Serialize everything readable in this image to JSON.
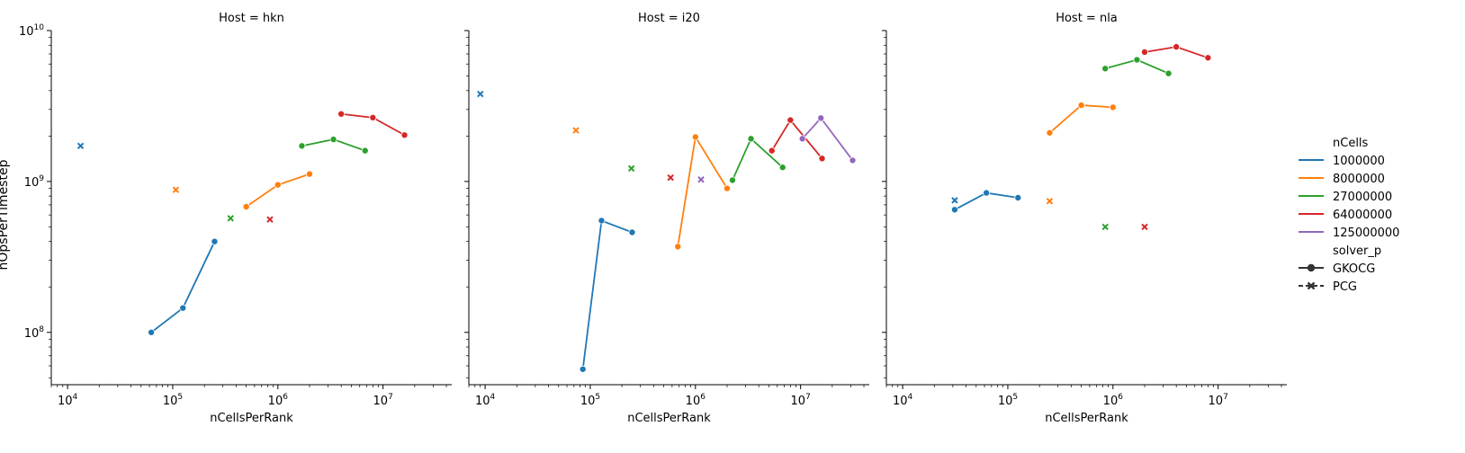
{
  "figure": {
    "ylabel": "nOpsPerTimestep",
    "xlabel": "nCellsPerRank"
  },
  "legend": {
    "hue_title": "nCells",
    "hue_entries": [
      {
        "label": "1000000",
        "color": "#1f77b4"
      },
      {
        "label": "8000000",
        "color": "#ff7f0e"
      },
      {
        "label": "27000000",
        "color": "#2ca02c"
      },
      {
        "label": "64000000",
        "color": "#d62728"
      },
      {
        "label": "125000000",
        "color": "#9467bd"
      }
    ],
    "style_title": "solver_p",
    "style_entries": [
      {
        "label": "GKOCG",
        "marker": "circle",
        "line": "solid"
      },
      {
        "label": "PCG",
        "marker": "x",
        "line": "dashed"
      }
    ],
    "placement": "right"
  },
  "chart_data": [
    {
      "type": "line",
      "title": "Host = hkn",
      "xlabel": "nCellsPerRank",
      "ylabel": "nOpsPerTimestep",
      "xscale": "log",
      "yscale": "log",
      "xlim": [
        7000,
        45000000
      ],
      "ylim": [
        45000000,
        10000000000
      ],
      "xticks": [
        {
          "v": 10000,
          "base": "10",
          "exp": "4"
        },
        {
          "v": 100000,
          "base": "10",
          "exp": "5"
        },
        {
          "v": 1000000,
          "base": "10",
          "exp": "6"
        },
        {
          "v": 10000000,
          "base": "10",
          "exp": "7"
        }
      ],
      "yticks": [
        {
          "v": 100000000,
          "base": "10",
          "exp": "8"
        },
        {
          "v": 1000000000,
          "base": "10",
          "exp": "9"
        },
        {
          "v": 10000000000,
          "base": "10",
          "exp": "10"
        }
      ],
      "series": [
        {
          "name": "1000000",
          "solver": "GKOCG",
          "color": "#1f77b4",
          "x": [
            62500,
            125000,
            250000
          ],
          "y": [
            100000000,
            145000000,
            400000000
          ]
        },
        {
          "name": "8000000",
          "solver": "GKOCG",
          "color": "#ff7f0e",
          "x": [
            500000,
            1000000,
            2000000
          ],
          "y": [
            680000000,
            950000000,
            1120000000
          ]
        },
        {
          "name": "27000000",
          "solver": "GKOCG",
          "color": "#2ca02c",
          "x": [
            1690000,
            3375000,
            6750000
          ],
          "y": [
            1720000000,
            1900000000,
            1600000000
          ]
        },
        {
          "name": "64000000",
          "solver": "GKOCG",
          "color": "#d62728",
          "x": [
            4000000,
            8000000,
            16000000
          ],
          "y": [
            2800000000,
            2650000000,
            2030000000
          ]
        },
        {
          "name": "1000000",
          "solver": "PCG",
          "color": "#1f77b4",
          "x": [
            13300
          ],
          "y": [
            1720000000
          ]
        },
        {
          "name": "8000000",
          "solver": "PCG",
          "color": "#ff7f0e",
          "x": [
            107000
          ],
          "y": [
            880000000
          ]
        },
        {
          "name": "27000000",
          "solver": "PCG",
          "color": "#2ca02c",
          "x": [
            355000
          ],
          "y": [
            570000000
          ]
        },
        {
          "name": "64000000",
          "solver": "PCG",
          "color": "#d62728",
          "x": [
            840000
          ],
          "y": [
            560000000
          ]
        }
      ]
    },
    {
      "type": "line",
      "title": "Host = i20",
      "xlabel": "nCellsPerRank",
      "ylabel": "",
      "xscale": "log",
      "yscale": "log",
      "xlim": [
        7000,
        45000000
      ],
      "ylim": [
        45000000,
        10000000000
      ],
      "xticks": [
        {
          "v": 10000,
          "base": "10",
          "exp": "4"
        },
        {
          "v": 100000,
          "base": "10",
          "exp": "5"
        },
        {
          "v": 1000000,
          "base": "10",
          "exp": "6"
        },
        {
          "v": 10000000,
          "base": "10",
          "exp": "7"
        }
      ],
      "yticks": [],
      "series": [
        {
          "name": "1000000",
          "solver": "GKOCG",
          "color": "#1f77b4",
          "x": [
            85000,
            128000,
            250000
          ],
          "y": [
            57000000,
            550000000,
            460000000
          ]
        },
        {
          "name": "8000000",
          "solver": "GKOCG",
          "color": "#ff7f0e",
          "x": [
            680000,
            1000000,
            2000000
          ],
          "y": [
            370000000,
            1970000000,
            900000000
          ]
        },
        {
          "name": "27000000",
          "solver": "GKOCG",
          "color": "#2ca02c",
          "x": [
            2250000,
            3375000,
            6750000
          ],
          "y": [
            1020000000,
            1920000000,
            1240000000
          ]
        },
        {
          "name": "64000000",
          "solver": "GKOCG",
          "color": "#d62728",
          "x": [
            5330000,
            8000000,
            16000000
          ],
          "y": [
            1600000000,
            2550000000,
            1420000000
          ]
        },
        {
          "name": "125000000",
          "solver": "GKOCG",
          "color": "#9467bd",
          "x": [
            10400000,
            15600000,
            31250000
          ],
          "y": [
            1920000000,
            2630000000,
            1380000000
          ]
        },
        {
          "name": "1000000",
          "solver": "PCG",
          "color": "#1f77b4",
          "x": [
            9000
          ],
          "y": [
            3800000000
          ]
        },
        {
          "name": "8000000",
          "solver": "PCG",
          "color": "#ff7f0e",
          "x": [
            73000
          ],
          "y": [
            2180000000
          ]
        },
        {
          "name": "27000000",
          "solver": "PCG",
          "color": "#2ca02c",
          "x": [
            246000
          ],
          "y": [
            1220000000
          ]
        },
        {
          "name": "64000000",
          "solver": "PCG",
          "color": "#d62728",
          "x": [
            580000
          ],
          "y": [
            1060000000
          ]
        },
        {
          "name": "125000000",
          "solver": "PCG",
          "color": "#9467bd",
          "x": [
            1130000
          ],
          "y": [
            1030000000
          ]
        }
      ]
    },
    {
      "type": "line",
      "title": "Host = nla",
      "xlabel": "nCellsPerRank",
      "ylabel": "",
      "xscale": "log",
      "yscale": "log",
      "xlim": [
        7000,
        45000000
      ],
      "ylim": [
        45000000,
        10000000000
      ],
      "xticks": [
        {
          "v": 10000,
          "base": "10",
          "exp": "4"
        },
        {
          "v": 100000,
          "base": "10",
          "exp": "5"
        },
        {
          "v": 1000000,
          "base": "10",
          "exp": "6"
        },
        {
          "v": 10000000,
          "base": "10",
          "exp": "7"
        }
      ],
      "yticks": [],
      "series": [
        {
          "name": "1000000",
          "solver": "GKOCG",
          "color": "#1f77b4",
          "x": [
            31250,
            62500,
            125000
          ],
          "y": [
            650000000,
            840000000,
            780000000
          ]
        },
        {
          "name": "8000000",
          "solver": "GKOCG",
          "color": "#ff7f0e",
          "x": [
            250000,
            500000,
            1000000
          ],
          "y": [
            2100000000,
            3200000000,
            3100000000
          ]
        },
        {
          "name": "27000000",
          "solver": "GKOCG",
          "color": "#2ca02c",
          "x": [
            844000,
            1690000,
            3375000
          ],
          "y": [
            5600000000,
            6400000000,
            5200000000
          ]
        },
        {
          "name": "64000000",
          "solver": "GKOCG",
          "color": "#d62728",
          "x": [
            2000000,
            4000000,
            8000000
          ],
          "y": [
            7200000000,
            7800000000,
            6600000000
          ]
        },
        {
          "name": "1000000",
          "solver": "PCG",
          "color": "#1f77b4",
          "x": [
            31250
          ],
          "y": [
            750000000
          ]
        },
        {
          "name": "8000000",
          "solver": "PCG",
          "color": "#ff7f0e",
          "x": [
            250000
          ],
          "y": [
            740000000
          ]
        },
        {
          "name": "27000000",
          "solver": "PCG",
          "color": "#2ca02c",
          "x": [
            844000
          ],
          "y": [
            500000000
          ]
        },
        {
          "name": "64000000",
          "solver": "PCG",
          "color": "#d62728",
          "x": [
            2000000
          ],
          "y": [
            500000000
          ]
        }
      ]
    }
  ]
}
